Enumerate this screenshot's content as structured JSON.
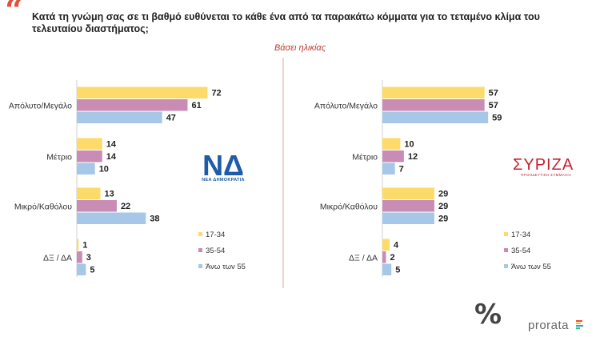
{
  "header": {
    "quote_mark": "“",
    "question": "Κατά τη γνώμη σας σε τι βαθμό ευθύνεται το κάθε ένα από τα παρακάτω κόμματα για το τεταμένο κλίμα του τελευταίου διαστήματος;",
    "subtitle": "Βάσει ηλικίας"
  },
  "logos": {
    "nd_letters": "ΝΔ",
    "nd_name": "ΝΕΑ ΔΗΜΟΚΡΑΤΙΑ",
    "syriza_name": "ΣΥΡΙΖΑ",
    "syriza_sub": "ΠΡΟΟΔΕΥΤΙΚΗ ΣΥΜΜΑΧΙΑ",
    "percent_mark": "%",
    "brand": "prorata"
  },
  "colors": {
    "age_17_34": "#fddb6a",
    "age_35_54": "#c98db5",
    "age_55_plus": "#a7c7e8",
    "divider": "#d9a9a1",
    "nd_blue": "#1e5ba8",
    "syriza_red": "#c8202f"
  },
  "chart_data": [
    {
      "type": "bar",
      "orientation": "horizontal",
      "party": "ΝΕΑ ΔΗΜΟΚΡΑΤΙΑ",
      "categories": [
        "Απόλυτο/Μεγάλο",
        "Μέτριο",
        "Μικρό/Καθόλου",
        "ΔΞ / ΔΑ"
      ],
      "series": [
        {
          "name": "17-34",
          "values": [
            72,
            14,
            13,
            1
          ]
        },
        {
          "name": "35-54",
          "values": [
            61,
            14,
            22,
            3
          ]
        },
        {
          "name": "Άνω των 55",
          "values": [
            47,
            10,
            38,
            5
          ]
        }
      ],
      "legend": [
        "17-34",
        "35-54",
        "Άνω των 55"
      ],
      "legend_position": "bottom-right",
      "xlim": [
        0,
        100
      ]
    },
    {
      "type": "bar",
      "orientation": "horizontal",
      "party": "ΣΥΡΙΖΑ",
      "categories": [
        "Απόλυτο/Μεγάλο",
        "Μέτριο",
        "Μικρό/Καθόλου",
        "ΔΞ / ΔΑ"
      ],
      "series": [
        {
          "name": "17-34",
          "values": [
            57,
            10,
            29,
            4
          ]
        },
        {
          "name": "35-54",
          "values": [
            57,
            12,
            29,
            2
          ]
        },
        {
          "name": "Άνω των 55",
          "values": [
            59,
            7,
            29,
            5
          ]
        }
      ],
      "legend": [
        "17-34",
        "35-54",
        "Άνω των 55"
      ],
      "legend_position": "bottom-right",
      "xlim": [
        0,
        100
      ]
    }
  ]
}
